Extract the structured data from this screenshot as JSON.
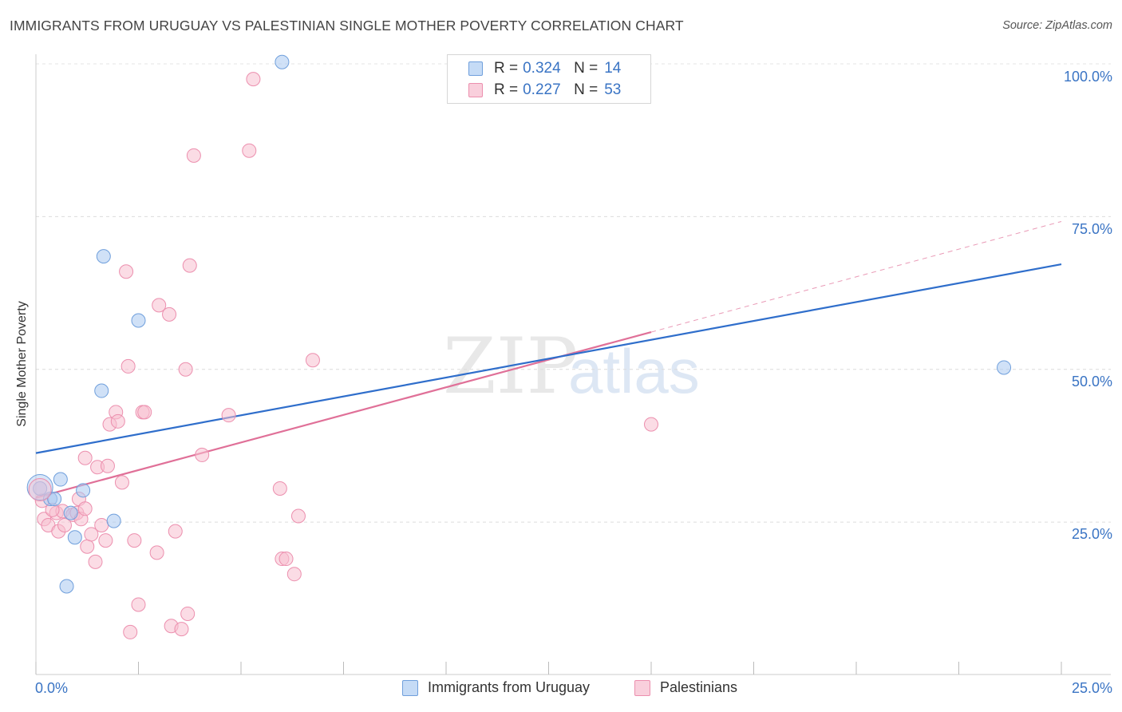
{
  "chart_data": {
    "type": "scatter",
    "title": "IMMIGRANTS FROM URUGUAY VS PALESTINIAN SINGLE MOTHER POVERTY CORRELATION CHART",
    "source": "Source: ZipAtlas.com",
    "xlabel": "",
    "ylabel": "Single Mother Poverty",
    "xlim": [
      0,
      25
    ],
    "ylim": [
      0,
      102
    ],
    "x_tick_labels": [
      "0.0%",
      "25.0%"
    ],
    "y_ticks": [
      {
        "value": 25,
        "label": "25.0%"
      },
      {
        "value": 50,
        "label": "50.0%"
      },
      {
        "value": 75,
        "label": "75.0%"
      },
      {
        "value": 100,
        "label": "100.0%"
      }
    ],
    "grid": true,
    "watermark": "ZIPatlas",
    "legend_top": [
      {
        "r_label": "R =",
        "r_value": "0.324",
        "n_label": "N =",
        "n_value": "14"
      },
      {
        "r_label": "R =",
        "r_value": "0.227",
        "n_label": "N =",
        "n_value": "53"
      }
    ],
    "series": [
      {
        "name": "Immigrants from Uruguay",
        "color": "#a9c8f0",
        "edge": "#6f9fdc",
        "line_color": "#2f6ecb",
        "trend": {
          "x0": 0,
          "y0": 36.3,
          "x1": 25,
          "y1": 67.2
        },
        "points": [
          {
            "x": 0.1,
            "y": 30.5
          },
          {
            "x": 0.35,
            "y": 28.8
          },
          {
            "x": 0.45,
            "y": 28.8
          },
          {
            "x": 0.6,
            "y": 32
          },
          {
            "x": 0.85,
            "y": 26.5
          },
          {
            "x": 0.95,
            "y": 22.5
          },
          {
            "x": 1.15,
            "y": 30.2
          },
          {
            "x": 1.6,
            "y": 46.5
          },
          {
            "x": 1.65,
            "y": 68.5
          },
          {
            "x": 1.9,
            "y": 25.2
          },
          {
            "x": 2.5,
            "y": 58
          },
          {
            "x": 0.75,
            "y": 14.5
          },
          {
            "x": 6.0,
            "y": 100.3
          },
          {
            "x": 23.6,
            "y": 50.3
          }
        ]
      },
      {
        "name": "Palestinians",
        "color": "#f7bfd0",
        "edge": "#ec8fae",
        "line_color": "#e07098",
        "trend": {
          "x0": 0,
          "y0": 29,
          "x1": 15,
          "y1": 56.1
        },
        "trend_dashed_to": {
          "x": 25,
          "y": 74.2
        },
        "points": [
          {
            "x": 0.15,
            "y": 28.5
          },
          {
            "x": 0.2,
            "y": 25.5
          },
          {
            "x": 0.3,
            "y": 24.5
          },
          {
            "x": 0.5,
            "y": 26.5
          },
          {
            "x": 0.55,
            "y": 23.5
          },
          {
            "x": 0.65,
            "y": 26.8
          },
          {
            "x": 0.7,
            "y": 24.5
          },
          {
            "x": 0.9,
            "y": 26.2
          },
          {
            "x": 1.0,
            "y": 26.5
          },
          {
            "x": 1.05,
            "y": 28.8
          },
          {
            "x": 1.1,
            "y": 25.5
          },
          {
            "x": 1.2,
            "y": 35.5
          },
          {
            "x": 1.25,
            "y": 21
          },
          {
            "x": 1.35,
            "y": 23
          },
          {
            "x": 1.45,
            "y": 18.5
          },
          {
            "x": 1.5,
            "y": 34
          },
          {
            "x": 1.6,
            "y": 24.5
          },
          {
            "x": 1.7,
            "y": 22
          },
          {
            "x": 1.75,
            "y": 34.2
          },
          {
            "x": 1.8,
            "y": 41
          },
          {
            "x": 1.95,
            "y": 43
          },
          {
            "x": 2.0,
            "y": 41.5
          },
          {
            "x": 2.1,
            "y": 31.5
          },
          {
            "x": 2.2,
            "y": 66
          },
          {
            "x": 2.25,
            "y": 50.5
          },
          {
            "x": 2.4,
            "y": 22
          },
          {
            "x": 2.5,
            "y": 11.5
          },
          {
            "x": 2.6,
            "y": 43
          },
          {
            "x": 2.65,
            "y": 43
          },
          {
            "x": 2.3,
            "y": 7
          },
          {
            "x": 2.95,
            "y": 20
          },
          {
            "x": 3.0,
            "y": 60.5
          },
          {
            "x": 3.25,
            "y": 59
          },
          {
            "x": 3.3,
            "y": 8
          },
          {
            "x": 3.4,
            "y": 23.5
          },
          {
            "x": 3.55,
            "y": 7.5
          },
          {
            "x": 3.65,
            "y": 50
          },
          {
            "x": 3.7,
            "y": 10
          },
          {
            "x": 3.75,
            "y": 67
          },
          {
            "x": 3.85,
            "y": 85
          },
          {
            "x": 4.05,
            "y": 36
          },
          {
            "x": 4.7,
            "y": 42.5
          },
          {
            "x": 5.2,
            "y": 85.8
          },
          {
            "x": 5.3,
            "y": 97.5
          },
          {
            "x": 5.95,
            "y": 30.5
          },
          {
            "x": 6.0,
            "y": 19
          },
          {
            "x": 6.1,
            "y": 19
          },
          {
            "x": 6.3,
            "y": 16.5
          },
          {
            "x": 6.4,
            "y": 26
          },
          {
            "x": 6.75,
            "y": 51.5
          },
          {
            "x": 15.0,
            "y": 41
          },
          {
            "x": 1.2,
            "y": 27.2
          },
          {
            "x": 0.4,
            "y": 27
          }
        ]
      }
    ]
  }
}
